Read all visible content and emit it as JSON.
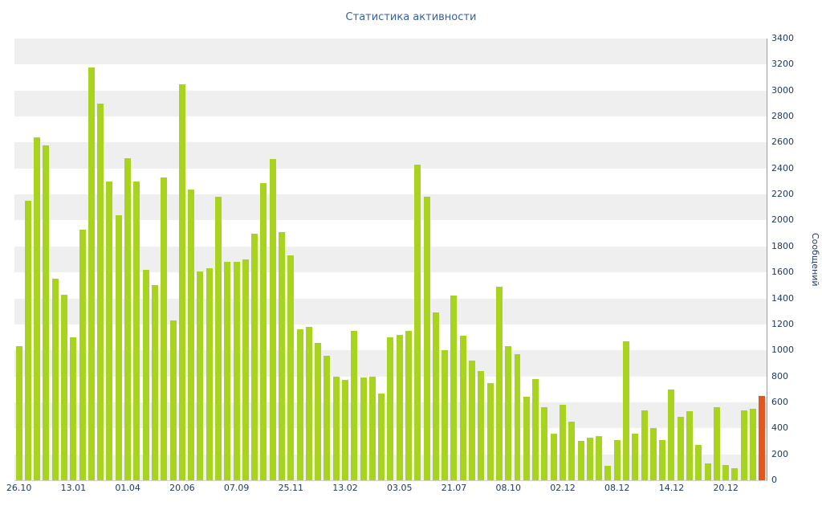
{
  "page": {
    "background": "#ffffff"
  },
  "chart_data": {
    "type": "bar",
    "title": "Статистика активности",
    "ylabel": "Сообщений",
    "xlabel": "",
    "ylim": [
      0,
      3400
    ],
    "y_step": 200,
    "grid": "horizontal-bands",
    "legend": "none",
    "bar_color": "#a8d420",
    "highlight": {
      "index": 82,
      "color": "#e3571e"
    },
    "band_color_even": "#efefef",
    "band_color_odd": "#ffffff",
    "axis_color": "#9a9a9a",
    "tick_text_color": "#1e3a66",
    "title_color": "#3a5f9e",
    "values": [
      1030,
      2150,
      2640,
      2580,
      1550,
      1430,
      1100,
      1930,
      3180,
      2900,
      2300,
      2040,
      2480,
      2300,
      1620,
      1500,
      2330,
      1230,
      3050,
      2240,
      1610,
      1630,
      2180,
      1680,
      1680,
      1700,
      1900,
      2290,
      2470,
      1910,
      1730,
      1160,
      1180,
      1060,
      960,
      800,
      770,
      1150,
      790,
      800,
      670,
      1100,
      1120,
      1150,
      2430,
      2180,
      1290,
      1000,
      1420,
      1110,
      920,
      840,
      750,
      1490,
      1030,
      970,
      640,
      780,
      560,
      360,
      580,
      450,
      300,
      330,
      340,
      110,
      310,
      1070,
      360,
      540,
      400,
      310,
      700,
      490,
      530,
      270,
      130,
      560,
      120,
      90,
      540,
      550,
      650
    ],
    "x_tick_labels": [
      {
        "index": 0,
        "label": "26.10"
      },
      {
        "index": 6,
        "label": "13.01"
      },
      {
        "index": 12,
        "label": "01.04"
      },
      {
        "index": 18,
        "label": "20.06"
      },
      {
        "index": 24,
        "label": "07.09"
      },
      {
        "index": 30,
        "label": "25.11"
      },
      {
        "index": 36,
        "label": "13.02"
      },
      {
        "index": 42,
        "label": "03.05"
      },
      {
        "index": 48,
        "label": "21.07"
      },
      {
        "index": 54,
        "label": "08.10"
      },
      {
        "index": 60,
        "label": "02.12"
      },
      {
        "index": 66,
        "label": "08.12"
      },
      {
        "index": 72,
        "label": "14.12"
      },
      {
        "index": 78,
        "label": "20.12"
      }
    ]
  }
}
